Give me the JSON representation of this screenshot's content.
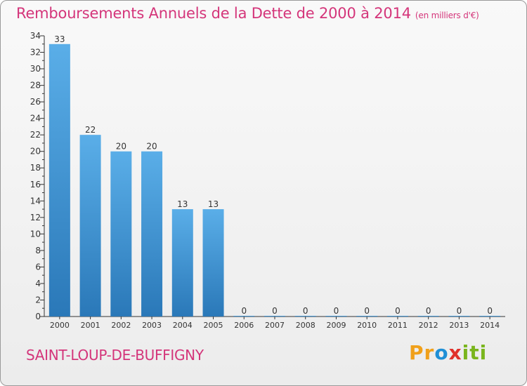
{
  "header": {
    "title": "Remboursements Annuels de la Dette de 2000 à 2014",
    "unit": "(en milliers d'€)"
  },
  "footer": {
    "commune": "SAINT-LOUP-DE-BUFFIGNY",
    "logo": "Proxiti"
  },
  "colors": {
    "title": "#d4357a",
    "bar_top": "#5aaee8",
    "bar_bottom": "#2a78b8",
    "logo_orange": "#f0a01a",
    "logo_blue": "#1f8fd6",
    "logo_red": "#e0302a",
    "logo_green": "#7ab51d"
  },
  "chart_data": {
    "type": "bar",
    "title": "Remboursements Annuels de la Dette de 2000 à 2014",
    "xlabel": "",
    "ylabel": "",
    "categories": [
      "2000",
      "2001",
      "2002",
      "2003",
      "2004",
      "2005",
      "2006",
      "2007",
      "2008",
      "2009",
      "2010",
      "2011",
      "2012",
      "2013",
      "2014"
    ],
    "values": [
      33,
      22,
      20,
      20,
      13,
      13,
      0,
      0,
      0,
      0,
      0,
      0,
      0,
      0,
      0
    ],
    "ylim": [
      0,
      34
    ],
    "yticks": [
      0,
      2,
      4,
      6,
      8,
      10,
      12,
      14,
      16,
      18,
      20,
      22,
      24,
      26,
      28,
      30,
      32,
      34
    ],
    "grid": false,
    "legend": "none"
  }
}
